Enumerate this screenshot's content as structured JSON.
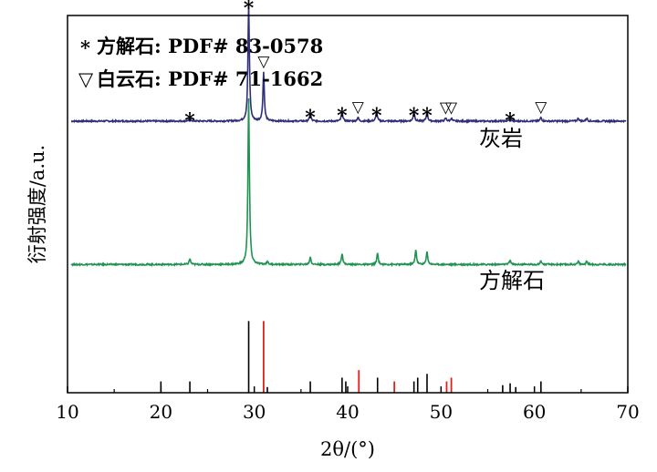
{
  "chart_data": {
    "type": "line",
    "xlabel": "2θ/(°)",
    "ylabel": "衍射强度/a.u.",
    "xlim": [
      10,
      70
    ],
    "x_ticks": [
      "10",
      "20",
      "30",
      "40",
      "50",
      "60",
      "70"
    ],
    "grid": false,
    "legend": [
      {
        "symbol": "*",
        "label": "方解石: PDF# 83-0578"
      },
      {
        "symbol": "▽",
        "label": "白云石: PDF# 71-1662"
      }
    ],
    "series": [
      {
        "name": "灰岩",
        "color": "#2e2e7a",
        "offset": 0.72,
        "peaks": [
          {
            "x": 23.1,
            "h": 0.012,
            "marker": "*"
          },
          {
            "x": 29.4,
            "h": 0.31,
            "marker": "*"
          },
          {
            "x": 31.0,
            "h": 0.13,
            "marker": "▽"
          },
          {
            "x": 36.0,
            "h": 0.02,
            "marker": "*"
          },
          {
            "x": 39.4,
            "h": 0.025,
            "marker": "*"
          },
          {
            "x": 41.1,
            "h": 0.01,
            "marker": "▽"
          },
          {
            "x": 43.1,
            "h": 0.025,
            "marker": "*"
          },
          {
            "x": 47.1,
            "h": 0.025,
            "marker": "*"
          },
          {
            "x": 48.5,
            "h": 0.025,
            "marker": "*"
          },
          {
            "x": 50.5,
            "h": 0.008,
            "marker": "▽"
          },
          {
            "x": 51.1,
            "h": 0.008,
            "marker": "▽"
          },
          {
            "x": 57.4,
            "h": 0.012,
            "marker": "*"
          },
          {
            "x": 60.7,
            "h": 0.01,
            "marker": "▽"
          },
          {
            "x": 64.7,
            "h": 0.008
          },
          {
            "x": 65.6,
            "h": 0.008
          }
        ]
      },
      {
        "name": "方解石",
        "color": "#1e9450",
        "offset": 0.34,
        "peaks": [
          {
            "x": 23.1,
            "h": 0.015
          },
          {
            "x": 29.4,
            "h": 0.44
          },
          {
            "x": 31.4,
            "h": 0.008
          },
          {
            "x": 36.0,
            "h": 0.02
          },
          {
            "x": 39.4,
            "h": 0.03
          },
          {
            "x": 43.2,
            "h": 0.03
          },
          {
            "x": 47.3,
            "h": 0.04
          },
          {
            "x": 48.5,
            "h": 0.035
          },
          {
            "x": 57.4,
            "h": 0.012
          },
          {
            "x": 60.7,
            "h": 0.01
          },
          {
            "x": 64.7,
            "h": 0.008
          },
          {
            "x": 65.6,
            "h": 0.008
          }
        ]
      }
    ],
    "reference_sticks": {
      "calcite_color": "#000000",
      "dolomite_color": "#e0201b",
      "calcite": [
        {
          "x": 20.0,
          "h": 0.03
        },
        {
          "x": 23.1,
          "h": 0.03
        },
        {
          "x": 29.4,
          "h": 0.19
        },
        {
          "x": 31.4,
          "h": 0.015
        },
        {
          "x": 36.0,
          "h": 0.03
        },
        {
          "x": 39.4,
          "h": 0.04
        },
        {
          "x": 39.8,
          "h": 0.03
        },
        {
          "x": 43.2,
          "h": 0.04
        },
        {
          "x": 47.1,
          "h": 0.03
        },
        {
          "x": 47.5,
          "h": 0.04
        },
        {
          "x": 48.5,
          "h": 0.05
        },
        {
          "x": 56.6,
          "h": 0.02
        },
        {
          "x": 57.4,
          "h": 0.025
        },
        {
          "x": 58.0,
          "h": 0.015
        },
        {
          "x": 60.7,
          "h": 0.03
        }
      ],
      "dolomite": [
        {
          "x": 31.0,
          "h": 0.19
        },
        {
          "x": 41.2,
          "h": 0.06
        },
        {
          "x": 45.0,
          "h": 0.03
        },
        {
          "x": 50.6,
          "h": 0.03
        },
        {
          "x": 51.1,
          "h": 0.04
        }
      ]
    }
  }
}
